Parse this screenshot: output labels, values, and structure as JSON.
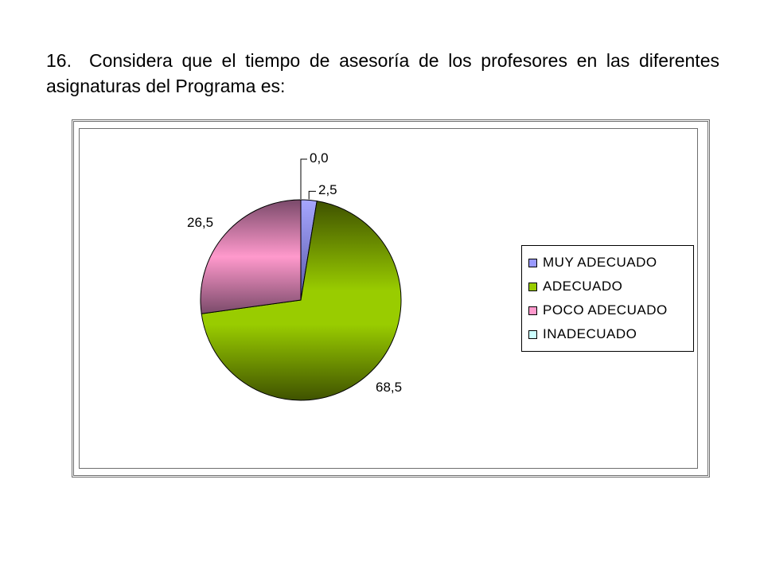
{
  "question": {
    "number": "16.",
    "text": "Considera que el tiempo de asesoría de los profesores  en las diferentes asignaturas del Programa es:"
  },
  "chart_data": {
    "type": "pie",
    "title": "",
    "categories": [
      "MUY ADECUADO",
      "ADECUADO",
      "POCO ADECUADO",
      "INADECUADO"
    ],
    "values": [
      2.5,
      68.5,
      26.5,
      0.0
    ],
    "data_labels": [
      "2,5",
      "68,5",
      "26,5",
      "0,0"
    ],
    "colors": [
      "#9999ff",
      "#99cc00",
      "#ff99cc",
      "#ccffff"
    ],
    "start_angle": "12 o'clock",
    "direction": "clockwise",
    "legend_position": "right",
    "legend": [
      {
        "label": "MUY ADECUADO",
        "color": "#9999ff"
      },
      {
        "label": "ADECUADO",
        "color": "#99cc00"
      },
      {
        "label": "POCO ADECUADO",
        "color": "#ff99cc"
      },
      {
        "label": "INADECUADO",
        "color": "#ccffff"
      }
    ]
  }
}
